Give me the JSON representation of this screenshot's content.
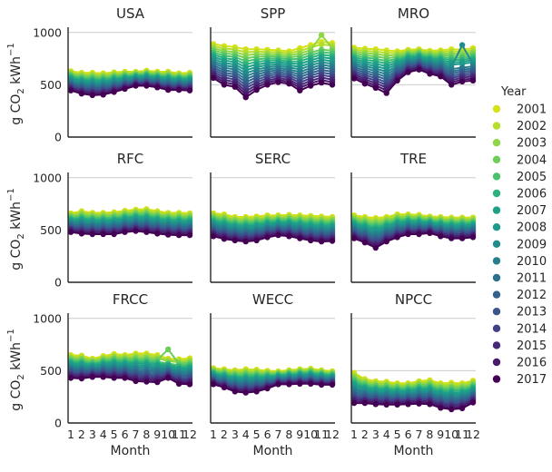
{
  "chart_data": {
    "type": "line",
    "legend": {
      "title": "Year",
      "placement": "right"
    },
    "years": [
      "2001",
      "2002",
      "2003",
      "2004",
      "2005",
      "2006",
      "2007",
      "2008",
      "2009",
      "2010",
      "2011",
      "2012",
      "2013",
      "2014",
      "2015",
      "2016",
      "2017"
    ],
    "year_colors": [
      "#d5e21a",
      "#b5de2b",
      "#8ed645",
      "#6ccd5a",
      "#4ac16d",
      "#2db27d",
      "#1fa187",
      "#1e9b8a",
      "#228c8d",
      "#277f8e",
      "#2c728e",
      "#33638d",
      "#3a548c",
      "#424086",
      "#482878",
      "#481a6c",
      "#440154"
    ],
    "x": [
      1,
      2,
      3,
      4,
      5,
      6,
      7,
      8,
      9,
      10,
      11,
      12
    ],
    "xlabel": "Month",
    "ylabel_main": "g CO",
    "ylabel_sub": "2",
    "ylabel_unit": " kWh",
    "ylabel_sup": "−1",
    "ylim": [
      0,
      1050
    ],
    "yticks": [
      0,
      500,
      1000
    ],
    "grid": "horizontal",
    "panels": [
      {
        "name": "USA",
        "first": [
          630,
          615,
          615,
          610,
          620,
          625,
          625,
          635,
          625,
          625,
          610,
          615
        ],
        "last": [
          445,
          415,
          400,
          405,
          430,
          460,
          490,
          490,
          475,
          450,
          450,
          445
        ],
        "spikes": []
      },
      {
        "name": "SPP",
        "first": [
          890,
          870,
          860,
          840,
          840,
          835,
          830,
          820,
          850,
          880,
          910,
          900
        ],
        "last": [
          565,
          500,
          480,
          380,
          450,
          500,
          525,
          510,
          445,
          490,
          520,
          500
        ],
        "spikes": [
          {
            "series_index": 2,
            "month": 11,
            "value": 975
          }
        ]
      },
      {
        "name": "MRO",
        "first": [
          855,
          845,
          840,
          830,
          820,
          835,
          840,
          825,
          830,
          840,
          835,
          850
        ],
        "last": [
          560,
          510,
          470,
          420,
          540,
          620,
          645,
          605,
          580,
          500,
          530,
          540
        ],
        "spikes": [
          {
            "series_index": 8,
            "month": 11,
            "value": 880
          }
        ]
      },
      {
        "name": "RFC",
        "first": [
          660,
          680,
          665,
          665,
          670,
          685,
          695,
          700,
          680,
          665,
          665,
          660
        ],
        "last": [
          480,
          465,
          460,
          460,
          460,
          480,
          490,
          480,
          465,
          455,
          450,
          450
        ],
        "spikes": []
      },
      {
        "name": "SERC",
        "first": [
          660,
          650,
          625,
          625,
          630,
          640,
          640,
          645,
          640,
          635,
          630,
          625
        ],
        "last": [
          440,
          415,
          400,
          390,
          400,
          430,
          450,
          440,
          420,
          400,
          390,
          395
        ],
        "spikes": []
      },
      {
        "name": "TRE",
        "first": [
          640,
          625,
          615,
          625,
          650,
          650,
          645,
          630,
          625,
          620,
          620,
          620
        ],
        "last": [
          420,
          380,
          330,
          390,
          430,
          460,
          460,
          470,
          440,
          420,
          420,
          430
        ],
        "spikes": []
      },
      {
        "name": "FRCC",
        "first": [
          650,
          645,
          615,
          640,
          660,
          650,
          665,
          665,
          650,
          615,
          610,
          620
        ],
        "last": [
          430,
          425,
          440,
          440,
          430,
          430,
          400,
          395,
          390,
          430,
          375,
          370
        ],
        "spikes": [
          {
            "series_index": 3,
            "month": 10,
            "value": 705
          }
        ]
      },
      {
        "name": "WECC",
        "first": [
          525,
          515,
          505,
          515,
          510,
          500,
          495,
          505,
          515,
          520,
          505,
          495
        ],
        "last": [
          370,
          340,
          300,
          290,
          300,
          330,
          370,
          370,
          375,
          375,
          365,
          365
        ],
        "spikes": []
      },
      {
        "name": "NPCC",
        "first": [
          480,
          420,
          400,
          395,
          380,
          380,
          400,
          410,
          380,
          385,
          380,
          405
        ],
        "last": [
          190,
          190,
          180,
          175,
          175,
          180,
          185,
          180,
          145,
          130,
          140,
          195
        ],
        "spikes": []
      }
    ]
  }
}
